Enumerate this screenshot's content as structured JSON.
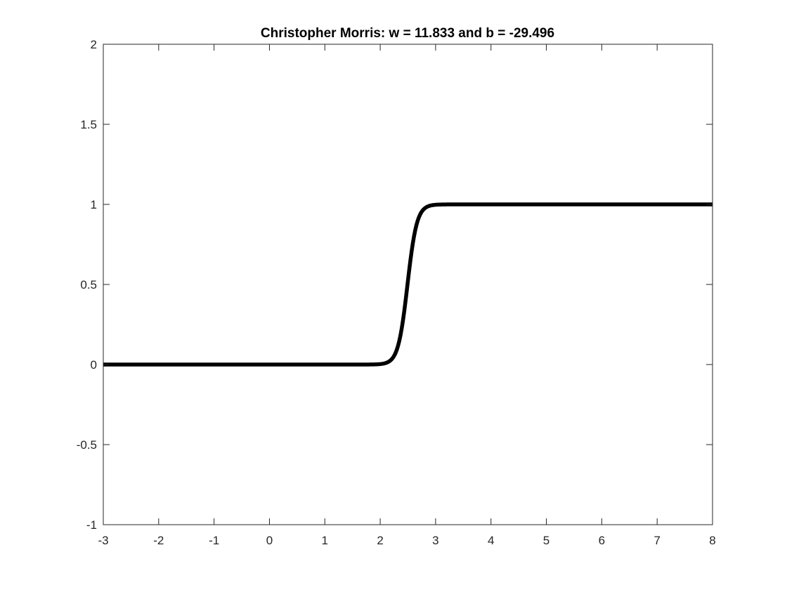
{
  "chart_data": {
    "type": "line",
    "title": "Christopher Morris: w = 11.833 and b = -29.496",
    "xlabel": "",
    "ylabel": "",
    "xlim": [
      -3,
      8
    ],
    "ylim": [
      -1,
      2
    ],
    "x_ticks": [
      -3,
      -2,
      -1,
      0,
      1,
      2,
      3,
      4,
      5,
      6,
      7,
      8
    ],
    "y_ticks": [
      -1,
      -0.5,
      0,
      0.5,
      1,
      1.5,
      2
    ],
    "grid": false,
    "series": [
      {
        "color": "#000000",
        "function": "sigmoid",
        "w": 11.833,
        "b": -29.496,
        "x_range": [
          -3,
          8
        ],
        "samples": 500
      }
    ]
  }
}
